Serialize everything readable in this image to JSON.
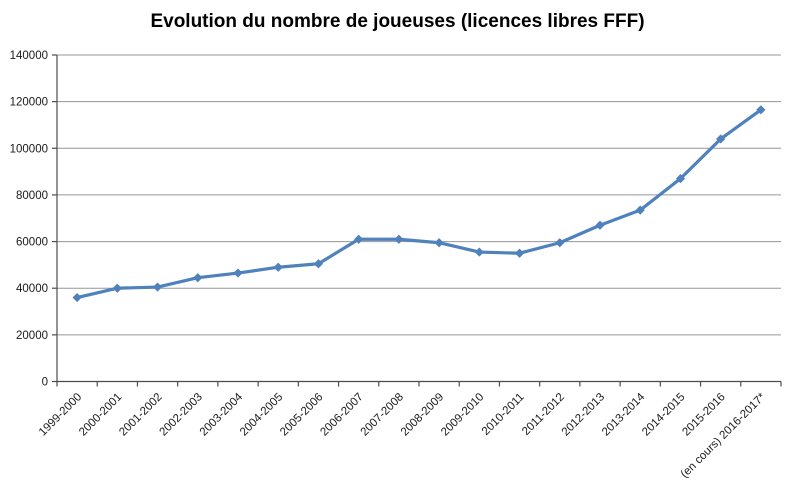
{
  "chart_data": {
    "type": "line",
    "title": "Evolution du nombre de joueuses (licences libres FFF)",
    "categories": [
      "1999-2000",
      "2000-2001",
      "2001-2002",
      "2002-2003",
      "2003-2004",
      "2004-2005",
      "2005-2006",
      "2006-2007",
      "2007-2008",
      "2008-2009",
      "2009-2010",
      "2010-2011",
      "2011-2012",
      "2012-2013",
      "2013-2014",
      "2014-2015",
      "2015-2016",
      "(en cours) 2016-2017*"
    ],
    "values": [
      36000,
      40000,
      40500,
      44500,
      46500,
      49000,
      50500,
      61000,
      61000,
      59500,
      55500,
      55000,
      59500,
      67000,
      73500,
      87000,
      104000,
      116500
    ],
    "xlabel": "",
    "ylabel": "",
    "ylim": [
      0,
      140000
    ],
    "yticks": [
      0,
      20000,
      40000,
      60000,
      80000,
      100000,
      120000,
      140000
    ],
    "ytick_labels": [
      "0",
      "20000",
      "40000",
      "60000",
      "80000",
      "100000",
      "120000",
      "140000"
    ],
    "grid": true,
    "legend": false,
    "marker": "diamond",
    "colors": {
      "line": "#4F81BD",
      "marker": "#4F81BD",
      "gridline": "#969696",
      "axis": "#4D4D4D",
      "tick_text": "#1A1A1A",
      "title_text": "#000000",
      "background": "#FFFFFF"
    }
  }
}
